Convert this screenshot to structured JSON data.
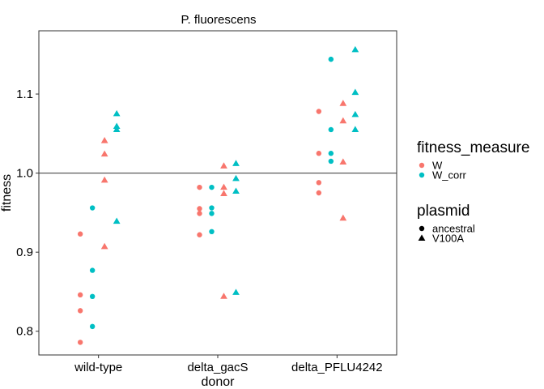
{
  "chart_data": {
    "type": "scatter",
    "title": "P. fluorescens",
    "xlabel": "donor",
    "ylabel": "fitness",
    "categories": [
      "wild-type",
      "delta_gacS",
      "delta_PFLU4242"
    ],
    "ylim": [
      0.77,
      1.18
    ],
    "yticks": [
      0.8,
      0.9,
      1.0,
      1.1
    ],
    "ytick_labels": [
      "0.8",
      "0.9",
      "1.0",
      "1.1"
    ],
    "hline": 1.0,
    "grid": false,
    "legends": [
      {
        "title": "fitness_measure",
        "entries": [
          {
            "label": "W",
            "color": "#F8766D"
          },
          {
            "label": "W_corr",
            "color": "#00BFC4"
          }
        ]
      },
      {
        "title": "plasmid",
        "entries": [
          {
            "label": "ancestral",
            "shape": "circle"
          },
          {
            "label": "V100A",
            "shape": "triangle"
          }
        ]
      }
    ],
    "series": [
      {
        "fitness_measure": "W",
        "plasmid": "ancestral",
        "points": [
          {
            "x": "wild-type",
            "y": 0.923
          },
          {
            "x": "wild-type",
            "y": 0.846
          },
          {
            "x": "wild-type",
            "y": 0.826
          },
          {
            "x": "wild-type",
            "y": 0.786
          },
          {
            "x": "delta_gacS",
            "y": 0.982
          },
          {
            "x": "delta_gacS",
            "y": 0.955
          },
          {
            "x": "delta_gacS",
            "y": 0.949
          },
          {
            "x": "delta_gacS",
            "y": 0.922
          },
          {
            "x": "delta_PFLU4242",
            "y": 1.078
          },
          {
            "x": "delta_PFLU4242",
            "y": 1.025
          },
          {
            "x": "delta_PFLU4242",
            "y": 0.988
          },
          {
            "x": "delta_PFLU4242",
            "y": 0.975
          }
        ]
      },
      {
        "fitness_measure": "W_corr",
        "plasmid": "ancestral",
        "points": [
          {
            "x": "wild-type",
            "y": 0.956
          },
          {
            "x": "wild-type",
            "y": 0.877
          },
          {
            "x": "wild-type",
            "y": 0.844
          },
          {
            "x": "wild-type",
            "y": 0.806
          },
          {
            "x": "delta_gacS",
            "y": 0.982
          },
          {
            "x": "delta_gacS",
            "y": 0.956
          },
          {
            "x": "delta_gacS",
            "y": 0.949
          },
          {
            "x": "delta_gacS",
            "y": 0.926
          },
          {
            "x": "delta_PFLU4242",
            "y": 1.144
          },
          {
            "x": "delta_PFLU4242",
            "y": 1.055
          },
          {
            "x": "delta_PFLU4242",
            "y": 1.025
          },
          {
            "x": "delta_PFLU4242",
            "y": 1.015
          }
        ]
      },
      {
        "fitness_measure": "W",
        "plasmid": "V100A",
        "points": [
          {
            "x": "wild-type",
            "y": 1.041
          },
          {
            "x": "wild-type",
            "y": 1.024
          },
          {
            "x": "wild-type",
            "y": 0.991
          },
          {
            "x": "wild-type",
            "y": 0.907
          },
          {
            "x": "delta_gacS",
            "y": 1.009
          },
          {
            "x": "delta_gacS",
            "y": 0.982
          },
          {
            "x": "delta_gacS",
            "y": 0.974
          },
          {
            "x": "delta_gacS",
            "y": 0.844
          },
          {
            "x": "delta_PFLU4242",
            "y": 1.088
          },
          {
            "x": "delta_PFLU4242",
            "y": 1.066
          },
          {
            "x": "delta_PFLU4242",
            "y": 1.014
          },
          {
            "x": "delta_PFLU4242",
            "y": 0.943
          }
        ]
      },
      {
        "fitness_measure": "W_corr",
        "plasmid": "V100A",
        "points": [
          {
            "x": "wild-type",
            "y": 1.075
          },
          {
            "x": "wild-type",
            "y": 1.059
          },
          {
            "x": "wild-type",
            "y": 1.055
          },
          {
            "x": "wild-type",
            "y": 0.939
          },
          {
            "x": "delta_gacS",
            "y": 1.012
          },
          {
            "x": "delta_gacS",
            "y": 0.993
          },
          {
            "x": "delta_gacS",
            "y": 0.977
          },
          {
            "x": "delta_gacS",
            "y": 0.849
          },
          {
            "x": "delta_PFLU4242",
            "y": 1.156
          },
          {
            "x": "delta_PFLU4242",
            "y": 1.102
          },
          {
            "x": "delta_PFLU4242",
            "y": 1.074
          },
          {
            "x": "delta_PFLU4242",
            "y": 1.055
          }
        ]
      }
    ]
  }
}
